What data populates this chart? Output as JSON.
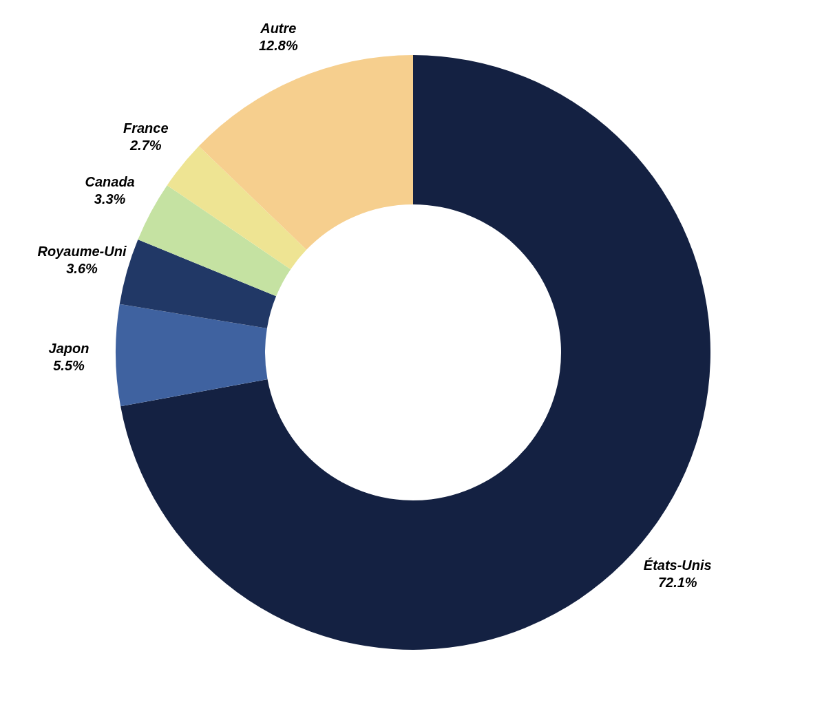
{
  "chart_data": {
    "type": "donut",
    "categories": [
      "États-Unis",
      "Japon",
      "Royaume-Uni",
      "Canada",
      "France",
      "Autre"
    ],
    "values": [
      72.1,
      5.5,
      3.6,
      3.3,
      2.7,
      12.8
    ],
    "value_labels": [
      "72.1%",
      "5.5%",
      "3.6%",
      "3.3%",
      "2.7%",
      "12.8%"
    ],
    "colors": [
      "#142142",
      "#3f62a0",
      "#213866",
      "#c5e2a2",
      "#eee493",
      "#f6cf8e"
    ],
    "legend": false
  }
}
